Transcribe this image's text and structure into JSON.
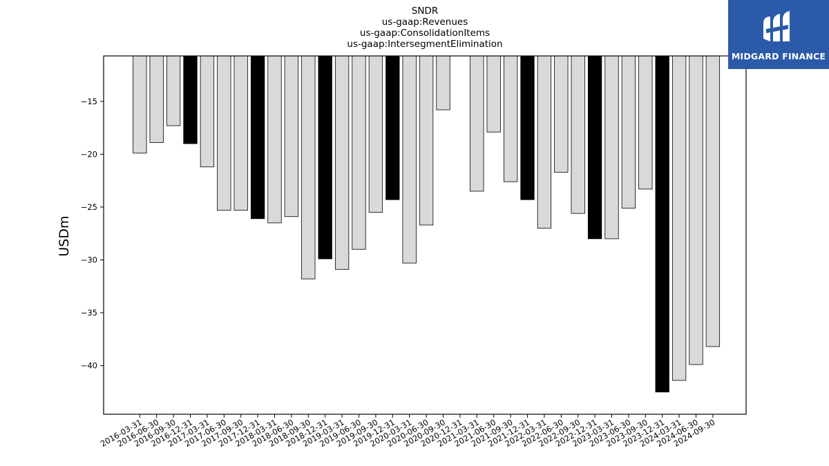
{
  "chart_data": {
    "type": "bar",
    "title_lines": [
      "SNDR",
      "us-gaap:Revenues",
      "us-gaap:ConsolidationItems",
      "us-gaap:IntersegmentElimination"
    ],
    "ylabel": "USDm",
    "xlabel": "",
    "ylim": [
      -44.6,
      -10.7
    ],
    "yticks": [
      -15,
      -20,
      -25,
      -30,
      -35,
      -40
    ],
    "grid": false,
    "categories": [
      "2016-03-31",
      "2016-06-30",
      "2016-09-30",
      "2016-12-31",
      "2017-03-31",
      "2017-06-30",
      "2017-09-30",
      "2017-12-31",
      "2018-03-31",
      "2018-06-30",
      "2018-09-30",
      "2018-12-31",
      "2019-03-31",
      "2019-06-30",
      "2019-09-30",
      "2019-12-31",
      "2020-03-31",
      "2020-06-30",
      "2020-09-30",
      "2020-12-31",
      "2021-03-31",
      "2021-06-30",
      "2021-09-30",
      "2021-12-31",
      "2022-03-31",
      "2022-06-30",
      "2022-09-30",
      "2022-12-31",
      "2023-03-31",
      "2023-06-30",
      "2023-09-30",
      "2023-12-31",
      "2024-03-31",
      "2024-06-30",
      "2024-09-30"
    ],
    "values": [
      -19.9,
      -18.9,
      -17.3,
      -19.0,
      -21.2,
      -25.3,
      -25.3,
      -26.1,
      -26.5,
      -25.9,
      -31.8,
      -29.9,
      -30.9,
      -29.0,
      -25.5,
      -24.3,
      -30.3,
      -26.7,
      -15.8,
      null,
      -23.5,
      -17.9,
      -22.6,
      -24.3,
      -27.0,
      -21.7,
      -25.6,
      -28.0,
      -28.0,
      -25.1,
      -23.3,
      -42.5,
      -41.4,
      -39.9,
      -38.2
    ],
    "highlight": [
      false,
      false,
      false,
      true,
      false,
      false,
      false,
      true,
      false,
      false,
      false,
      true,
      false,
      false,
      false,
      true,
      false,
      false,
      false,
      false,
      false,
      false,
      false,
      true,
      false,
      false,
      false,
      true,
      false,
      false,
      false,
      true,
      false,
      false,
      false
    ],
    "colors": {
      "bar": "#d9d9d9",
      "highlight": "#000000",
      "edge": "#000000"
    }
  },
  "logo": {
    "text": "MIDGARD FINANCE",
    "color": "#2b5aa8"
  }
}
